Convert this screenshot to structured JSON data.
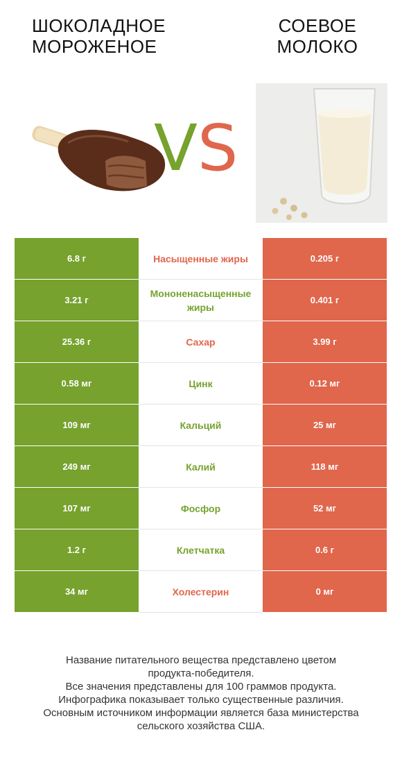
{
  "header": {
    "left_title": "ШОКОЛАДНОЕ МОРОЖЕНОЕ",
    "right_title": "СОЕВОЕ МОЛОКО",
    "vs_v": "V",
    "vs_s": "S"
  },
  "colors": {
    "left_winner": "#76a22d",
    "right_winner": "#e0664c"
  },
  "rows": [
    {
      "left": "6.8 г",
      "label": "Насыщенные жиры",
      "right": "0.205 г",
      "winner": "right"
    },
    {
      "left": "3.21 г",
      "label": "Мононенасыщенные жиры",
      "right": "0.401 г",
      "winner": "left"
    },
    {
      "left": "25.36 г",
      "label": "Сахар",
      "right": "3.99 г",
      "winner": "right"
    },
    {
      "left": "0.58 мг",
      "label": "Цинк",
      "right": "0.12 мг",
      "winner": "left"
    },
    {
      "left": "109 мг",
      "label": "Кальций",
      "right": "25 мг",
      "winner": "left"
    },
    {
      "left": "249 мг",
      "label": "Калий",
      "right": "118 мг",
      "winner": "left"
    },
    {
      "left": "107 мг",
      "label": "Фосфор",
      "right": "52 мг",
      "winner": "left"
    },
    {
      "left": "1.2 г",
      "label": "Клетчатка",
      "right": "0.6 г",
      "winner": "left"
    },
    {
      "left": "34 мг",
      "label": "Холестерин",
      "right": "0 мг",
      "winner": "right"
    }
  ],
  "footer": [
    "Название питательного вещества представлено цветом",
    "продукта-победителя.",
    "Все значения представлены для 100 граммов продукта.",
    "Инфографика показывает только существенные различия.",
    "Основным источником информации является база министерства",
    "сельского хозяйства США."
  ]
}
